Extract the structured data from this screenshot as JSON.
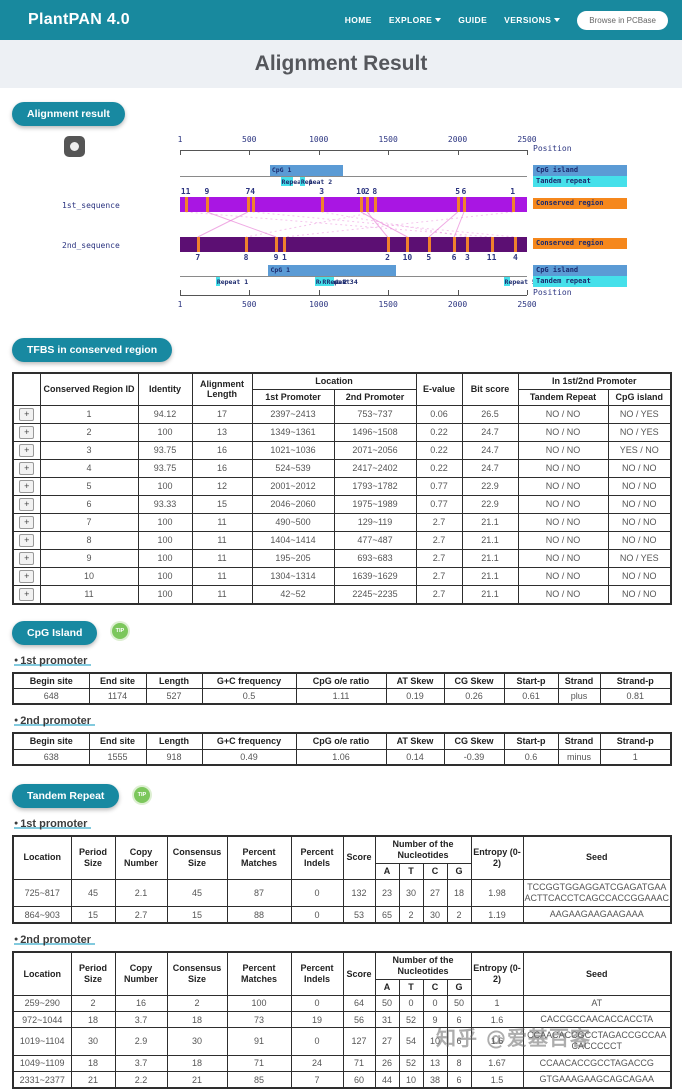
{
  "header": {
    "brand": "PlantPAN 4.0",
    "nav": [
      {
        "label": "HOME",
        "has_dropdown": false
      },
      {
        "label": "EXPLORE",
        "has_dropdown": true
      },
      {
        "label": "GUIDE",
        "has_dropdown": false
      },
      {
        "label": "VERSIONS",
        "has_dropdown": true
      }
    ],
    "browse_button": "Browse in PCBase"
  },
  "page_title": "Alignment Result",
  "section_buttons": {
    "alignment": "Alignment result",
    "tfbs": "TFBS in conserved region",
    "cpg": "CpG Island",
    "tandem": "Tandem Repeat"
  },
  "tip_label": "TIP",
  "promoter_headings": {
    "first": "1st promoter",
    "second": "2nd promoter"
  },
  "diagram": {
    "position_label": "Position",
    "axis_ticks": [
      1,
      500,
      1000,
      1500,
      2000,
      2500
    ],
    "axis_max": 2500,
    "legend": {
      "cpg": "CpG island",
      "tandem": "Tandem repeat",
      "conserved": "Conserved region"
    },
    "seq1": {
      "label": "1st_sequence",
      "cpg": {
        "label": "CpG 1",
        "start": 648,
        "end": 1174
      },
      "repeats": [
        {
          "label": "Repeat 1",
          "start": 725,
          "end": 817
        },
        {
          "label": "Repeat 2",
          "start": 864,
          "end": 903
        }
      ],
      "markers": [
        {
          "id": 1,
          "pos": 2397
        },
        {
          "id": 2,
          "pos": 1349
        },
        {
          "id": 3,
          "pos": 1021
        },
        {
          "id": 4,
          "pos": 524
        },
        {
          "id": 5,
          "pos": 2001
        },
        {
          "id": 6,
          "pos": 2046
        },
        {
          "id": 7,
          "pos": 490
        },
        {
          "id": 8,
          "pos": 1404
        },
        {
          "id": 9,
          "pos": 195
        },
        {
          "id": 10,
          "pos": 1304
        },
        {
          "id": 11,
          "pos": 42
        }
      ]
    },
    "seq2": {
      "label": "2nd_sequence",
      "cpg": {
        "label": "CpG 1",
        "start": 638,
        "end": 1555
      },
      "repeats": [
        {
          "label": "Repeat 1",
          "start": 259,
          "end": 290
        },
        {
          "label": "Repeat 2",
          "start": 972,
          "end": 1044
        },
        {
          "label": "Repeat 3",
          "start": 1019,
          "end": 1104
        },
        {
          "label": "Repeat 4",
          "start": 1049,
          "end": 1109
        },
        {
          "label": "Repeat 5",
          "start": 2331,
          "end": 2377
        }
      ],
      "markers": [
        {
          "id": 1,
          "pos": 753
        },
        {
          "id": 2,
          "pos": 1496
        },
        {
          "id": 3,
          "pos": 2071
        },
        {
          "id": 4,
          "pos": 2417
        },
        {
          "id": 5,
          "pos": 1793
        },
        {
          "id": 6,
          "pos": 1975
        },
        {
          "id": 7,
          "pos": 129
        },
        {
          "id": 8,
          "pos": 477
        },
        {
          "id": 9,
          "pos": 693
        },
        {
          "id": 10,
          "pos": 1639
        },
        {
          "id": 11,
          "pos": 2245
        }
      ]
    },
    "colors": {
      "seq1_bar": "#a916e3",
      "seq2_bar": "#5c0f73",
      "marker": "#f0822c",
      "cpg": "#5b9bd5",
      "tandem": "#45e0ea",
      "conserved": "#f5871c",
      "link": "#e87fd6"
    }
  },
  "tfbs": {
    "expand_label": "+",
    "headers": {
      "region_id": "Conserved Region ID",
      "identity": "Identity",
      "alignment_length": "Alignment Length",
      "location": "Location",
      "p1": "1st Promoter",
      "p2": "2nd Promoter",
      "evalue": "E-value",
      "bit_score": "Bit score",
      "in_promoter": "In 1st/2nd Promoter",
      "tandem": "Tandem Repeat",
      "cpg": "CpG island"
    },
    "rows": [
      {
        "id": "1",
        "identity": "94.12",
        "len": "17",
        "p1": "2397~2413",
        "p2": "753~737",
        "ev": "0.06",
        "bit": "26.5",
        "tr": "NO / NO",
        "cpg": "NO / YES"
      },
      {
        "id": "2",
        "identity": "100",
        "len": "13",
        "p1": "1349~1361",
        "p2": "1496~1508",
        "ev": "0.22",
        "bit": "24.7",
        "tr": "NO / NO",
        "cpg": "NO / YES"
      },
      {
        "id": "3",
        "identity": "93.75",
        "len": "16",
        "p1": "1021~1036",
        "p2": "2071~2056",
        "ev": "0.22",
        "bit": "24.7",
        "tr": "NO / NO",
        "cpg": "YES / NO"
      },
      {
        "id": "4",
        "identity": "93.75",
        "len": "16",
        "p1": "524~539",
        "p2": "2417~2402",
        "ev": "0.22",
        "bit": "24.7",
        "tr": "NO / NO",
        "cpg": "NO / NO"
      },
      {
        "id": "5",
        "identity": "100",
        "len": "12",
        "p1": "2001~2012",
        "p2": "1793~1782",
        "ev": "0.77",
        "bit": "22.9",
        "tr": "NO / NO",
        "cpg": "NO / NO"
      },
      {
        "id": "6",
        "identity": "93.33",
        "len": "15",
        "p1": "2046~2060",
        "p2": "1975~1989",
        "ev": "0.77",
        "bit": "22.9",
        "tr": "NO / NO",
        "cpg": "NO / NO"
      },
      {
        "id": "7",
        "identity": "100",
        "len": "11",
        "p1": "490~500",
        "p2": "129~119",
        "ev": "2.7",
        "bit": "21.1",
        "tr": "NO / NO",
        "cpg": "NO / NO"
      },
      {
        "id": "8",
        "identity": "100",
        "len": "11",
        "p1": "1404~1414",
        "p2": "477~487",
        "ev": "2.7",
        "bit": "21.1",
        "tr": "NO / NO",
        "cpg": "NO / NO"
      },
      {
        "id": "9",
        "identity": "100",
        "len": "11",
        "p1": "195~205",
        "p2": "693~683",
        "ev": "2.7",
        "bit": "21.1",
        "tr": "NO / NO",
        "cpg": "NO / YES"
      },
      {
        "id": "10",
        "identity": "100",
        "len": "11",
        "p1": "1304~1314",
        "p2": "1639~1629",
        "ev": "2.7",
        "bit": "21.1",
        "tr": "NO / NO",
        "cpg": "NO / NO"
      },
      {
        "id": "11",
        "identity": "100",
        "len": "11",
        "p1": "42~52",
        "p2": "2245~2235",
        "ev": "2.7",
        "bit": "21.1",
        "tr": "NO / NO",
        "cpg": "NO / NO"
      }
    ]
  },
  "cpg_island": {
    "headers": [
      "Begin site",
      "End site",
      "Length",
      "G+C frequency",
      "CpG o/e ratio",
      "AT Skew",
      "CG Skew",
      "Start-p",
      "Strand",
      "Strand-p"
    ],
    "promoter1": [
      "648",
      "1174",
      "527",
      "0.5",
      "1.11",
      "0.19",
      "0.26",
      "0.61",
      "plus",
      "0.81"
    ],
    "promoter2": [
      "638",
      "1555",
      "918",
      "0.49",
      "1.06",
      "0.14",
      "-0.39",
      "0.6",
      "minus",
      "1"
    ]
  },
  "tandem_repeat": {
    "headers": {
      "location": "Location",
      "period": "Period Size",
      "copy": "Copy Number",
      "consensus": "Consensus Size",
      "matches": "Percent Matches",
      "indels": "Percent Indels",
      "score": "Score",
      "nucleotides": "Number of the Nucleotides",
      "a": "A",
      "t": "T",
      "c": "C",
      "g": "G",
      "entropy": "Entropy (0-2)",
      "seed": "Seed"
    },
    "promoter1_rows": [
      {
        "loc": "725~817",
        "period": "45",
        "copy": "2.1",
        "cons": "45",
        "match": "87",
        "indel": "0",
        "score": "132",
        "a": "23",
        "t": "30",
        "c": "27",
        "g": "18",
        "entropy": "1.98",
        "seed": "TCCGGTGGAGGATCGAGATGAAACTTCACCTCAGCCACCGGAAAC"
      },
      {
        "loc": "864~903",
        "period": "15",
        "copy": "2.7",
        "cons": "15",
        "match": "88",
        "indel": "0",
        "score": "53",
        "a": "65",
        "t": "2",
        "c": "30",
        "g": "2",
        "entropy": "1.19",
        "seed": "AAGAAGAAGAAGAAA"
      }
    ],
    "promoter2_rows": [
      {
        "loc": "259~290",
        "period": "2",
        "copy": "16",
        "cons": "2",
        "match": "100",
        "indel": "0",
        "score": "64",
        "a": "50",
        "t": "0",
        "c": "0",
        "g": "50",
        "entropy": "1",
        "seed": "AT"
      },
      {
        "loc": "972~1044",
        "period": "18",
        "copy": "3.7",
        "cons": "18",
        "match": "73",
        "indel": "19",
        "score": "56",
        "a": "31",
        "t": "52",
        "c": "9",
        "g": "6",
        "entropy": "1.6",
        "seed": "CACCGCCAACACCACCTA"
      },
      {
        "loc": "1019~1104",
        "period": "30",
        "copy": "2.9",
        "cons": "30",
        "match": "91",
        "indel": "0",
        "score": "127",
        "a": "27",
        "t": "54",
        "c": "10",
        "g": "6",
        "entropy": "1.6",
        "seed": "CCAACACCGCCTAGACCGCCAACACCCCCT"
      },
      {
        "loc": "1049~1109",
        "period": "18",
        "copy": "3.7",
        "cons": "18",
        "match": "71",
        "indel": "24",
        "score": "71",
        "a": "26",
        "t": "52",
        "c": "13",
        "g": "8",
        "entropy": "1.67",
        "seed": "CCAACACCGCCTAGACCG"
      },
      {
        "loc": "2331~2377",
        "period": "21",
        "copy": "2.2",
        "cons": "21",
        "match": "85",
        "indel": "7",
        "score": "60",
        "a": "44",
        "t": "10",
        "c": "38",
        "g": "6",
        "entropy": "1.5",
        "seed": "GTGAAAGAAGCAGCAGAA"
      }
    ]
  },
  "watermark": "知乎 @爱基百客"
}
